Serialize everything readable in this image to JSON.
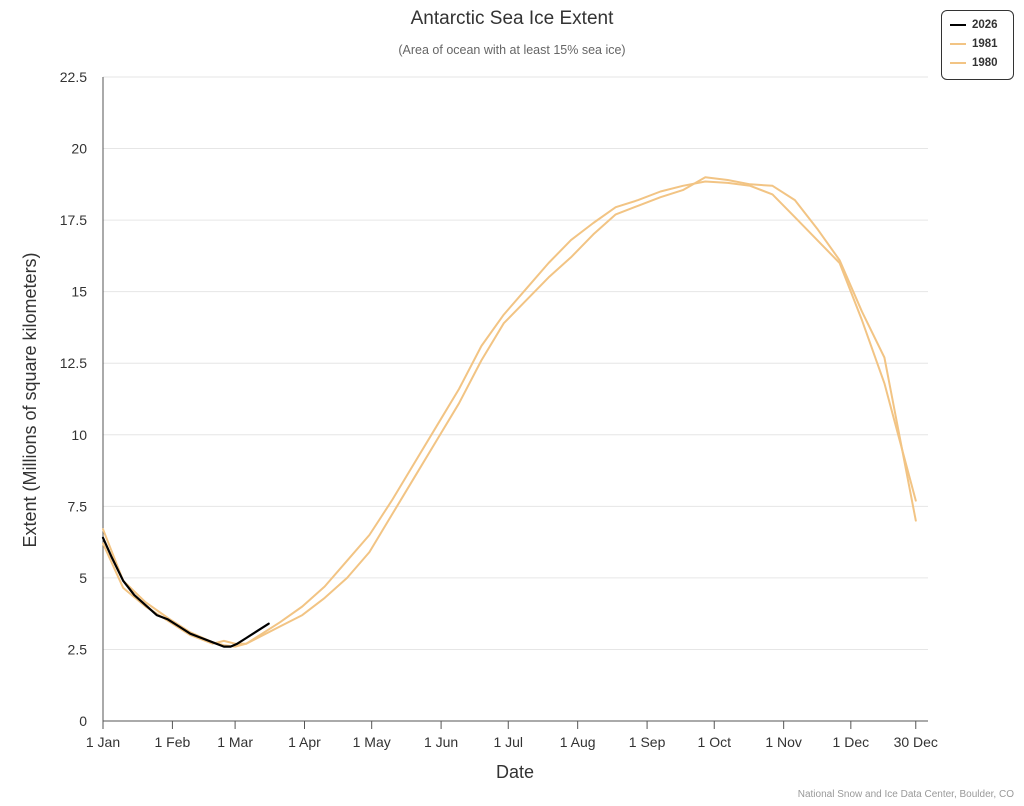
{
  "title": "Antarctic Sea Ice Extent",
  "subtitle": "(Area of ocean with at least 15% sea ice)",
  "credit": "National Snow and Ice Data Center, Boulder, CO",
  "legend": [
    {
      "label": "2026",
      "color": "#000000"
    },
    {
      "label": "1981",
      "color": "#f2c484"
    },
    {
      "label": "1980",
      "color": "#f2c484"
    }
  ],
  "chart_data": {
    "type": "line",
    "title": "Antarctic Sea Ice Extent",
    "subtitle": "(Area of ocean with at least 15% sea ice)",
    "xlabel": "Date",
    "ylabel": "Extent (Millions of square kilometers)",
    "x_unit": "day of year",
    "xlim": [
      1,
      365
    ],
    "ylim": [
      0,
      22.5
    ],
    "yticks": [
      0,
      2.5,
      5,
      7.5,
      10,
      12.5,
      15,
      17.5,
      20,
      22.5
    ],
    "ytick_labels": [
      "0",
      "2.5",
      "5",
      "7.5",
      "10",
      "12.5",
      "15",
      "17.5",
      "20",
      "22.5"
    ],
    "xticks": [
      {
        "day": 1,
        "label": "1 Jan"
      },
      {
        "day": 32,
        "label": "1 Feb"
      },
      {
        "day": 60,
        "label": "1 Mar"
      },
      {
        "day": 91,
        "label": "1 Apr"
      },
      {
        "day": 121,
        "label": "1 May"
      },
      {
        "day": 152,
        "label": "1 Jun"
      },
      {
        "day": 182,
        "label": "1 Jul"
      },
      {
        "day": 213,
        "label": "1 Aug"
      },
      {
        "day": 244,
        "label": "1 Sep"
      },
      {
        "day": 274,
        "label": "1 Oct"
      },
      {
        "day": 305,
        "label": "1 Nov"
      },
      {
        "day": 335,
        "label": "1 Dec"
      },
      {
        "day": 364,
        "label": "30 Dec"
      }
    ],
    "grid": true,
    "legend_position": "top-right",
    "series": [
      {
        "name": "2026",
        "color": "#000000",
        "x": [
          1,
          5,
          10,
          15,
          20,
          25,
          30,
          35,
          40,
          45,
          50,
          55,
          58,
          61,
          65,
          70,
          75
        ],
        "y": [
          6.4,
          5.7,
          4.9,
          4.4,
          4.05,
          3.7,
          3.55,
          3.3,
          3.05,
          2.9,
          2.75,
          2.6,
          2.6,
          2.7,
          2.9,
          3.15,
          3.4
        ]
      },
      {
        "name": "1981",
        "color": "#f2c484",
        "x": [
          1,
          10,
          20,
          30,
          40,
          50,
          55,
          60,
          65,
          70,
          80,
          90,
          100,
          110,
          120,
          130,
          140,
          150,
          160,
          170,
          180,
          190,
          200,
          210,
          220,
          230,
          240,
          250,
          260,
          270,
          280,
          290,
          300,
          310,
          320,
          330,
          340,
          350,
          364
        ],
        "y": [
          6.7,
          4.9,
          4.15,
          3.6,
          3.1,
          2.75,
          2.65,
          2.6,
          2.7,
          2.95,
          3.45,
          4.0,
          4.7,
          5.6,
          6.5,
          7.7,
          9.0,
          10.3,
          11.6,
          13.1,
          14.2,
          15.1,
          16.0,
          16.8,
          17.4,
          17.95,
          18.2,
          18.5,
          18.7,
          18.85,
          18.8,
          18.7,
          18.4,
          17.6,
          16.8,
          16.0,
          14.0,
          11.8,
          7.7
        ]
      },
      {
        "name": "1980",
        "color": "#f2c484",
        "x": [
          1,
          10,
          20,
          30,
          40,
          50,
          55,
          60,
          65,
          70,
          80,
          90,
          100,
          110,
          120,
          130,
          140,
          150,
          160,
          170,
          180,
          190,
          200,
          210,
          220,
          230,
          240,
          250,
          260,
          270,
          280,
          290,
          300,
          310,
          320,
          330,
          340,
          350,
          364
        ],
        "y": [
          6.2,
          4.65,
          4.0,
          3.5,
          3.0,
          2.7,
          2.8,
          2.7,
          2.7,
          2.9,
          3.3,
          3.7,
          4.3,
          5.0,
          5.9,
          7.2,
          8.5,
          9.8,
          11.1,
          12.6,
          13.9,
          14.7,
          15.5,
          16.2,
          17.0,
          17.7,
          18.0,
          18.3,
          18.55,
          19.0,
          18.9,
          18.75,
          18.7,
          18.2,
          17.2,
          16.1,
          14.3,
          12.7,
          7.0
        ]
      }
    ]
  }
}
